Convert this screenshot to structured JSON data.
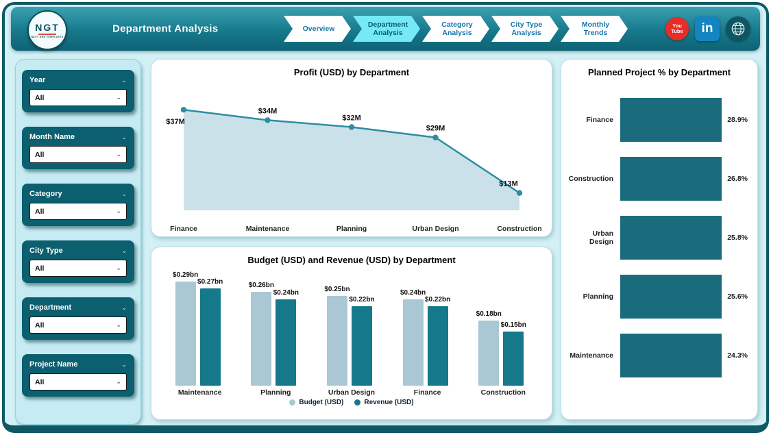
{
  "header": {
    "logo_text": "NGT",
    "logo_sub": "NEXT GEN TEMPLATES",
    "title": "Department Analysis",
    "nav": [
      {
        "label": "Overview",
        "active": false
      },
      {
        "label": "Department Analysis",
        "active": true
      },
      {
        "label": "Category Analysis",
        "active": false
      },
      {
        "label": "City Type Analysis",
        "active": false
      },
      {
        "label": "Monthly Trends",
        "active": false
      }
    ],
    "social": {
      "youtube_line1": "You",
      "youtube_line2": "Tube",
      "linkedin_glyph": "in"
    }
  },
  "icons": {
    "chevron_down": "⌄"
  },
  "filters": [
    {
      "label": "Year",
      "value": "All"
    },
    {
      "label": "Month Name",
      "value": "All"
    },
    {
      "label": "Category",
      "value": "All"
    },
    {
      "label": "City Type",
      "value": "All"
    },
    {
      "label": "Department",
      "value": "All"
    },
    {
      "label": "Project Name",
      "value": "All"
    }
  ],
  "chart_data": [
    {
      "type": "area",
      "title": "Profit (USD) by Department",
      "categories": [
        "Finance",
        "Maintenance",
        "Planning",
        "Urban Design",
        "Construction"
      ],
      "values": [
        37,
        34,
        32,
        29,
        13
      ],
      "labels": [
        "$37M",
        "$34M",
        "$32M",
        "$29M",
        "$13M"
      ],
      "unit": "USD millions",
      "line_color": "#2e8da2",
      "area_fill": "#c8dfe8",
      "legend_position": "none",
      "grid": false
    },
    {
      "type": "bar",
      "title": "Budget (USD) and Revenue (USD) by Department",
      "categories": [
        "Maintenance",
        "Planning",
        "Urban Design",
        "Finance",
        "Construction"
      ],
      "series": [
        {
          "name": "Budget (USD)",
          "values": [
            0.29,
            0.26,
            0.25,
            0.24,
            0.18
          ],
          "labels": [
            "$0.29bn",
            "$0.26bn",
            "$0.25bn",
            "$0.24bn",
            "$0.18bn"
          ],
          "color": "#a9c8d3"
        },
        {
          "name": "Revenue (USD)",
          "values": [
            0.27,
            0.24,
            0.22,
            0.22,
            0.15
          ],
          "labels": [
            "$0.27bn",
            "$0.24bn",
            "$0.22bn",
            "$0.22bn",
            "$0.15bn"
          ],
          "color": "#15798b"
        }
      ],
      "unit": "USD billions",
      "legend_position": "bottom",
      "grid": false
    },
    {
      "type": "bar",
      "orientation": "horizontal",
      "title": "Planned Project % by Department",
      "categories": [
        "Finance",
        "Construction",
        "Urban Design",
        "Planning",
        "Maintenance"
      ],
      "values": [
        28.9,
        26.8,
        25.8,
        25.6,
        24.3
      ],
      "labels": [
        "28.9%",
        "26.8%",
        "25.8%",
        "25.6%",
        "24.3%"
      ],
      "unit": "percent",
      "bar_color": "#1a6c7c",
      "legend_position": "none",
      "grid": false
    }
  ]
}
